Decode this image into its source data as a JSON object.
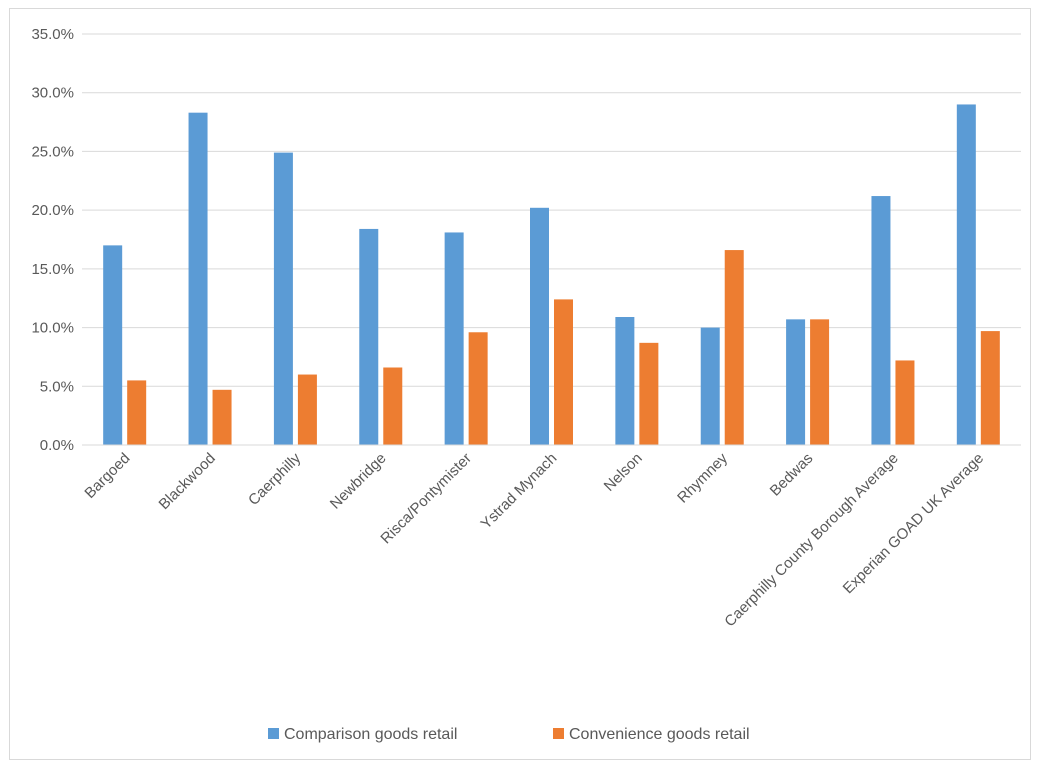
{
  "chart_data": {
    "type": "bar",
    "categories": [
      "Bargoed",
      "Blackwood",
      "Caerphilly",
      "Newbridge",
      "Risca/Pontymister",
      "Ystrad Mynach",
      "Nelson",
      "Rhymney",
      "Bedwas",
      "Caerphilly County Borough Average",
      "Experian GOAD UK Average"
    ],
    "series": [
      {
        "name": "Comparison goods retail",
        "color": "#5b9bd5",
        "values": [
          17.0,
          28.3,
          24.9,
          18.4,
          18.1,
          20.2,
          10.9,
          10.0,
          10.7,
          21.2,
          29.0
        ]
      },
      {
        "name": "Convenience goods retail",
        "color": "#ed7d31",
        "values": [
          5.5,
          4.7,
          6.0,
          6.6,
          9.6,
          12.4,
          8.7,
          16.6,
          10.7,
          7.2,
          9.7
        ]
      }
    ],
    "ylim": [
      0,
      35
    ],
    "y_ticks": [
      "0.0%",
      "5.0%",
      "10.0%",
      "15.0%",
      "20.0%",
      "25.0%",
      "30.0%",
      "35.0%"
    ],
    "y_tick_values": [
      0,
      5,
      10,
      15,
      20,
      25,
      30,
      35
    ],
    "grid": true,
    "legend_position": "bottom",
    "gridline_color": "#d9d9d9",
    "title": "",
    "xlabel": "",
    "ylabel": ""
  }
}
